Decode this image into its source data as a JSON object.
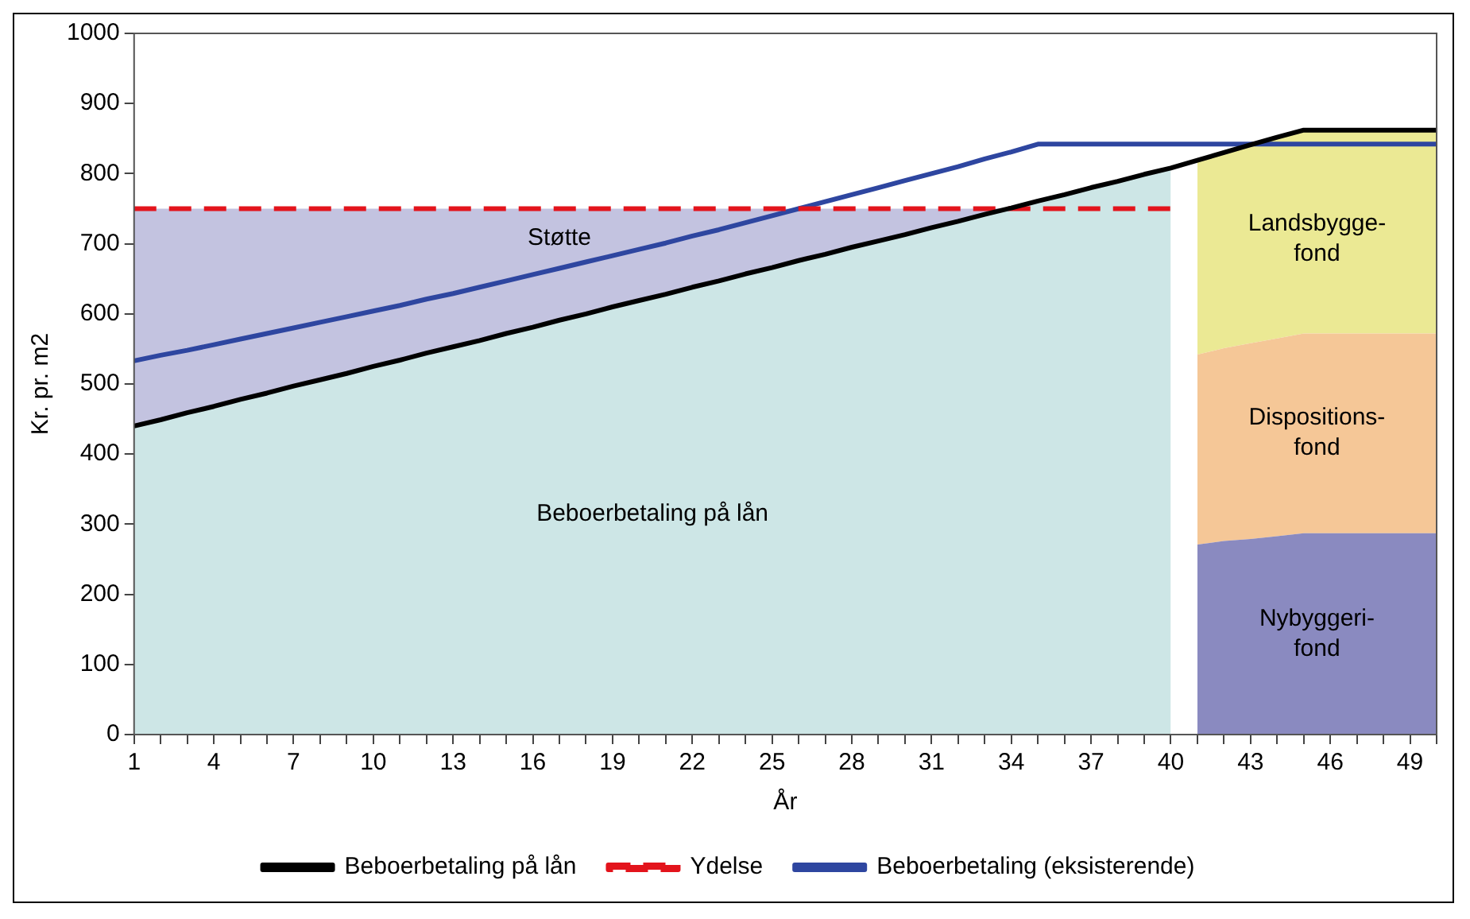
{
  "chart_data": {
    "type": "area",
    "xlabel": "År",
    "ylabel": "Kr. pr. m2",
    "stacked": true,
    "grid": false,
    "legend": "bottom",
    "categories": [
      "1",
      null,
      null,
      "4",
      null,
      null,
      "7",
      null,
      null,
      "10",
      null,
      null,
      "13",
      null,
      null,
      "16",
      null,
      null,
      "19",
      null,
      null,
      "22",
      null,
      null,
      "25",
      null,
      null,
      "28",
      null,
      null,
      "31",
      null,
      null,
      "34",
      null,
      null,
      "37",
      null,
      null,
      "40",
      null,
      null,
      "43",
      null,
      null,
      "46",
      null,
      null,
      "49",
      null
    ],
    "ylim": [
      0,
      1000
    ],
    "yticks": [
      0,
      100,
      200,
      300,
      400,
      500,
      600,
      700,
      800,
      900,
      1000
    ],
    "series": [
      {
        "name": "Beboerbetaling på lån",
        "type": "area",
        "color": "#cde6e6",
        "values": [
          440,
          449,
          459,
          468,
          478,
          487,
          497,
          506,
          515,
          525,
          534,
          544,
          553,
          562,
          572,
          581,
          591,
          600,
          610,
          619,
          628,
          638,
          647,
          657,
          666,
          676,
          685,
          695,
          704,
          713,
          723,
          732,
          742,
          751,
          761,
          770,
          780,
          789,
          799,
          808,
          null,
          null,
          null,
          null,
          null,
          null,
          null,
          null,
          null,
          null
        ]
      },
      {
        "name": "Støtte",
        "type": "area",
        "color": "#c3c3e0",
        "values": [
          310,
          301,
          291,
          282,
          272,
          263,
          253,
          244,
          235,
          225,
          216,
          206,
          197,
          188,
          178,
          169,
          159,
          150,
          140,
          131,
          122,
          112,
          103,
          93,
          84,
          74,
          65,
          55,
          46,
          37,
          27,
          18,
          8,
          0,
          null,
          null,
          null,
          null,
          null,
          null,
          null,
          null,
          null,
          null,
          null,
          null,
          null,
          null,
          null,
          null
        ]
      },
      {
        "name": "Nybyggeri-fond",
        "type": "area",
        "color": "#8a8ac0",
        "values": [
          null,
          null,
          null,
          null,
          null,
          null,
          null,
          null,
          null,
          null,
          null,
          null,
          null,
          null,
          null,
          null,
          null,
          null,
          null,
          null,
          null,
          null,
          null,
          null,
          null,
          null,
          null,
          null,
          null,
          null,
          null,
          null,
          null,
          null,
          null,
          null,
          null,
          null,
          null,
          null,
          271,
          276,
          279,
          283,
          287,
          287,
          287,
          287,
          287,
          287
        ]
      },
      {
        "name": "Dispositions-fond",
        "type": "area",
        "color": "#f5c797",
        "values": [
          null,
          null,
          null,
          null,
          null,
          null,
          null,
          null,
          null,
          null,
          null,
          null,
          null,
          null,
          null,
          null,
          null,
          null,
          null,
          null,
          null,
          null,
          null,
          null,
          null,
          null,
          null,
          null,
          null,
          null,
          null,
          null,
          null,
          null,
          null,
          null,
          null,
          null,
          null,
          null,
          271,
          275,
          279,
          282,
          285,
          285,
          285,
          285,
          285,
          285
        ]
      },
      {
        "name": "Landsbygge-fond",
        "type": "area",
        "color": "#ebe994",
        "values": [
          null,
          null,
          null,
          null,
          null,
          null,
          null,
          null,
          null,
          null,
          null,
          null,
          null,
          null,
          null,
          null,
          null,
          null,
          null,
          null,
          null,
          null,
          null,
          null,
          null,
          null,
          null,
          null,
          null,
          null,
          null,
          null,
          null,
          null,
          null,
          null,
          null,
          null,
          null,
          null,
          277,
          279,
          283,
          287,
          290,
          290,
          290,
          290,
          290,
          290
        ]
      },
      {
        "name": "Beboerbetaling på lån",
        "type": "line",
        "color": "#000000",
        "line_style": "solid",
        "values": [
          440,
          449,
          459,
          468,
          478,
          487,
          497,
          506,
          515,
          525,
          534,
          544,
          553,
          562,
          572,
          581,
          591,
          600,
          610,
          619,
          628,
          638,
          647,
          657,
          666,
          676,
          685,
          695,
          704,
          713,
          723,
          732,
          742,
          751,
          761,
          770,
          780,
          789,
          799,
          808,
          819,
          830,
          841,
          852,
          862,
          862,
          862,
          862,
          862,
          862
        ]
      },
      {
        "name": "Ydelse",
        "type": "line",
        "color": "#e3141c",
        "line_style": "dashed",
        "values": [
          750,
          750,
          750,
          750,
          750,
          750,
          750,
          750,
          750,
          750,
          750,
          750,
          750,
          750,
          750,
          750,
          750,
          750,
          750,
          750,
          750,
          750,
          750,
          750,
          750,
          750,
          750,
          750,
          750,
          750,
          750,
          750,
          750,
          750,
          750,
          750,
          750,
          750,
          750,
          750,
          null,
          null,
          null,
          null,
          null,
          null,
          null,
          null,
          null,
          null
        ]
      },
      {
        "name": "Beboerbetaling (eksisterende)",
        "type": "line",
        "color": "#2e46a0",
        "line_style": "solid",
        "values": [
          533,
          541,
          548,
          556,
          564,
          572,
          580,
          588,
          596,
          604,
          612,
          621,
          629,
          638,
          647,
          656,
          665,
          674,
          683,
          692,
          701,
          711,
          720,
          730,
          740,
          750,
          760,
          770,
          780,
          790,
          800,
          810,
          821,
          831,
          842,
          842,
          842,
          842,
          842,
          842,
          842,
          842,
          842,
          842,
          842,
          842,
          842,
          842,
          842,
          842
        ]
      }
    ]
  }
}
